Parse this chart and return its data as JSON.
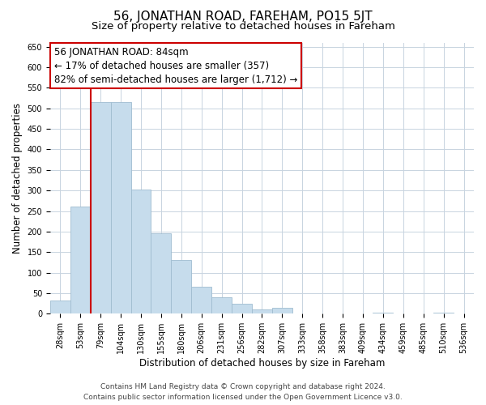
{
  "title": "56, JONATHAN ROAD, FAREHAM, PO15 5JT",
  "subtitle": "Size of property relative to detached houses in Fareham",
  "xlabel": "Distribution of detached houses by size in Fareham",
  "ylabel": "Number of detached properties",
  "categories": [
    "28sqm",
    "53sqm",
    "79sqm",
    "104sqm",
    "130sqm",
    "155sqm",
    "180sqm",
    "206sqm",
    "231sqm",
    "256sqm",
    "282sqm",
    "307sqm",
    "333sqm",
    "358sqm",
    "383sqm",
    "409sqm",
    "434sqm",
    "459sqm",
    "485sqm",
    "510sqm",
    "536sqm"
  ],
  "values": [
    33,
    260,
    515,
    515,
    303,
    196,
    130,
    65,
    40,
    24,
    10,
    15,
    0,
    0,
    0,
    0,
    2,
    0,
    0,
    2,
    0
  ],
  "bar_color": "#c6dcec",
  "bar_edge_color": "#a0bcd0",
  "vline_x": 1.5,
  "vline_color": "#cc0000",
  "annotation_line1": "56 JONATHAN ROAD: 84sqm",
  "annotation_line2": "← 17% of detached houses are smaller (357)",
  "annotation_line3": "82% of semi-detached houses are larger (1,712) →",
  "annotation_box_color": "#ffffff",
  "annotation_box_edge": "#cc0000",
  "ylim": [
    0,
    660
  ],
  "yticks": [
    0,
    50,
    100,
    150,
    200,
    250,
    300,
    350,
    400,
    450,
    500,
    550,
    600,
    650
  ],
  "footer_line1": "Contains HM Land Registry data © Crown copyright and database right 2024.",
  "footer_line2": "Contains public sector information licensed under the Open Government Licence v3.0.",
  "bg_color": "#ffffff",
  "grid_color": "#c8d4e0",
  "title_fontsize": 11,
  "subtitle_fontsize": 9.5,
  "axis_label_fontsize": 8.5,
  "tick_fontsize": 7,
  "annotation_fontsize": 8.5,
  "footer_fontsize": 6.5
}
